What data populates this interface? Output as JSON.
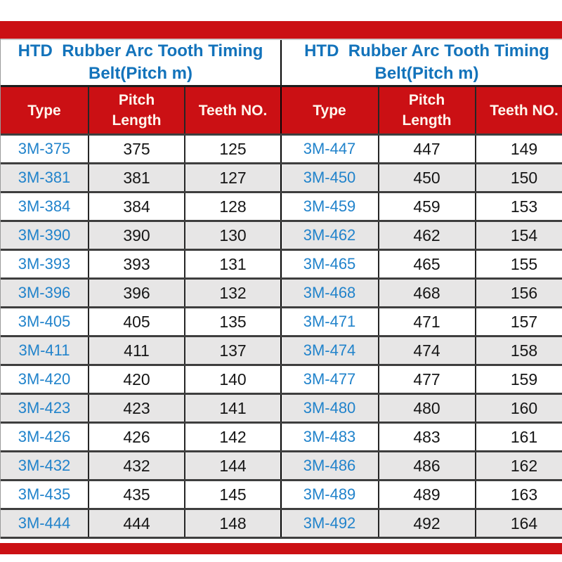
{
  "page": {
    "background_color": "#ffffff",
    "accent_red": "#cb1014",
    "title_blue": "#1373bb",
    "type_link_blue": "#2183cb",
    "row_alt_gray": "#e7e6e6",
    "header_text_color": "#fff7ee",
    "decor": {
      "top_bar": "red-accent-bar",
      "bottom_bar": "red-accent-bar"
    }
  },
  "tables": [
    {
      "title_line1": "HTD  Rubber Arc Tooth Timing",
      "title_line2": "Belt(Pitch m)",
      "columns": [
        "Type",
        "Pitch Length",
        "Teeth NO."
      ],
      "rows": [
        {
          "type": "3M-375",
          "pitch_length": "375",
          "teeth_no": "125"
        },
        {
          "type": "3M-381",
          "pitch_length": "381",
          "teeth_no": "127"
        },
        {
          "type": "3M-384",
          "pitch_length": "384",
          "teeth_no": "128"
        },
        {
          "type": "3M-390",
          "pitch_length": "390",
          "teeth_no": "130"
        },
        {
          "type": "3M-393",
          "pitch_length": "393",
          "teeth_no": "131"
        },
        {
          "type": "3M-396",
          "pitch_length": "396",
          "teeth_no": "132"
        },
        {
          "type": "3M-405",
          "pitch_length": "405",
          "teeth_no": "135"
        },
        {
          "type": "3M-411",
          "pitch_length": "411",
          "teeth_no": "137"
        },
        {
          "type": "3M-420",
          "pitch_length": "420",
          "teeth_no": "140"
        },
        {
          "type": "3M-423",
          "pitch_length": "423",
          "teeth_no": "141"
        },
        {
          "type": "3M-426",
          "pitch_length": "426",
          "teeth_no": "142"
        },
        {
          "type": "3M-432",
          "pitch_length": "432",
          "teeth_no": "144"
        },
        {
          "type": "3M-435",
          "pitch_length": "435",
          "teeth_no": "145"
        },
        {
          "type": "3M-444",
          "pitch_length": "444",
          "teeth_no": "148"
        }
      ]
    },
    {
      "title_line1": "HTD  Rubber Arc Tooth Timing",
      "title_line2": "Belt(Pitch m)",
      "columns": [
        "Type",
        "Pitch Length",
        "Teeth NO."
      ],
      "rows": [
        {
          "type": "3M-447",
          "pitch_length": "447",
          "teeth_no": "149"
        },
        {
          "type": "3M-450",
          "pitch_length": "450",
          "teeth_no": "150"
        },
        {
          "type": "3M-459",
          "pitch_length": "459",
          "teeth_no": "153"
        },
        {
          "type": "3M-462",
          "pitch_length": "462",
          "teeth_no": "154"
        },
        {
          "type": "3M-465",
          "pitch_length": "465",
          "teeth_no": "155"
        },
        {
          "type": "3M-468",
          "pitch_length": "468",
          "teeth_no": "156"
        },
        {
          "type": "3M-471",
          "pitch_length": "471",
          "teeth_no": "157"
        },
        {
          "type": "3M-474",
          "pitch_length": "474",
          "teeth_no": "158"
        },
        {
          "type": "3M-477",
          "pitch_length": "477",
          "teeth_no": "159"
        },
        {
          "type": "3M-480",
          "pitch_length": "480",
          "teeth_no": "160"
        },
        {
          "type": "3M-483",
          "pitch_length": "483",
          "teeth_no": "161"
        },
        {
          "type": "3M-486",
          "pitch_length": "486",
          "teeth_no": "162"
        },
        {
          "type": "3M-489",
          "pitch_length": "489",
          "teeth_no": "163"
        },
        {
          "type": "3M-492",
          "pitch_length": "492",
          "teeth_no": "164"
        }
      ]
    }
  ]
}
